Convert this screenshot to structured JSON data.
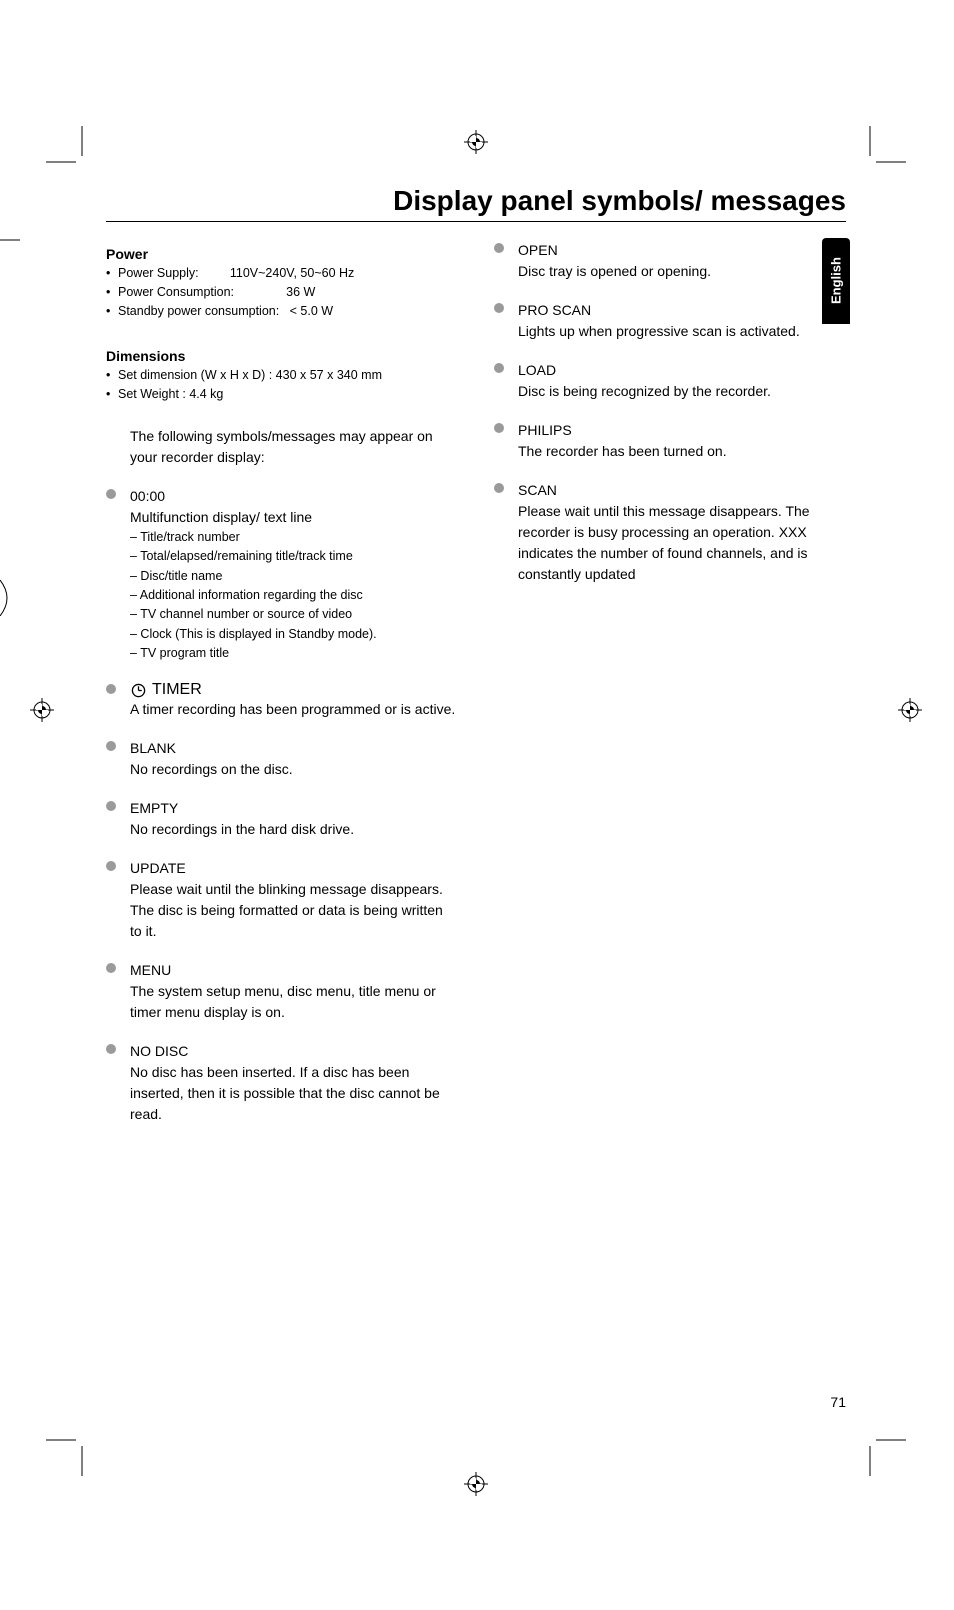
{
  "page_title": "Display panel symbols/ messages",
  "language_tab": "English",
  "page_number": "71",
  "power": {
    "heading": "Power",
    "lines": [
      "Power Supply:         110V~240V, 50~60 Hz",
      "Power Consumption:               36 W",
      "Standby power consumption:   < 5.0 W"
    ]
  },
  "dimensions": {
    "heading": "Dimensions",
    "lines": [
      "Set dimension (W x H x D) : 430 x 57 x 340 mm",
      "Set Weight : 4.4 kg"
    ]
  },
  "intro": "The following symbols/messages may appear on your recorder display:",
  "left_entries": [
    {
      "title": "00:00",
      "desc": " Multifunction display/ text line",
      "subs": [
        "– Title/track number",
        "– Total/elapsed/remaining title/track time",
        "– Disc/title name",
        "– Additional information regarding the disc",
        "– TV channel number or source of video",
        "– Clock (This is displayed in Standby mode).",
        "– TV program title"
      ]
    },
    {
      "title": "TIMER",
      "has_icon": true,
      "desc": "A timer recording has been programmed or is active."
    },
    {
      "title": "BLANK",
      "desc": "No recordings on the disc."
    },
    {
      "title": "EMPTY",
      "desc": "No recordings in the hard disk drive."
    },
    {
      "title": "UPDATE",
      "desc": "Please wait until the blinking message disappears.  The disc is being formatted or data is being written to it."
    },
    {
      "title": "MENU",
      "desc": "The system setup menu, disc menu, title menu or timer menu display is on."
    },
    {
      "title": "NO DISC",
      "desc": "No disc has been inserted.  If a disc has been inserted, then it is possible that the disc cannot be read."
    }
  ],
  "right_entries": [
    {
      "title": "OPEN",
      "desc": "Disc tray is opened or opening."
    },
    {
      "title": "PRO SCAN",
      "desc": "Lights up when progressive scan is activated."
    },
    {
      "title": "LOAD",
      "desc": "Disc is being recognized by the recorder."
    },
    {
      "title": "PHILIPS",
      "desc": "The recorder has been turned on."
    },
    {
      "title": "SCAN",
      "desc": "Please wait until this message disappears. The recorder is busy processing an operation. XXX indicates the number of found channels, and is constantly updated"
    }
  ]
}
